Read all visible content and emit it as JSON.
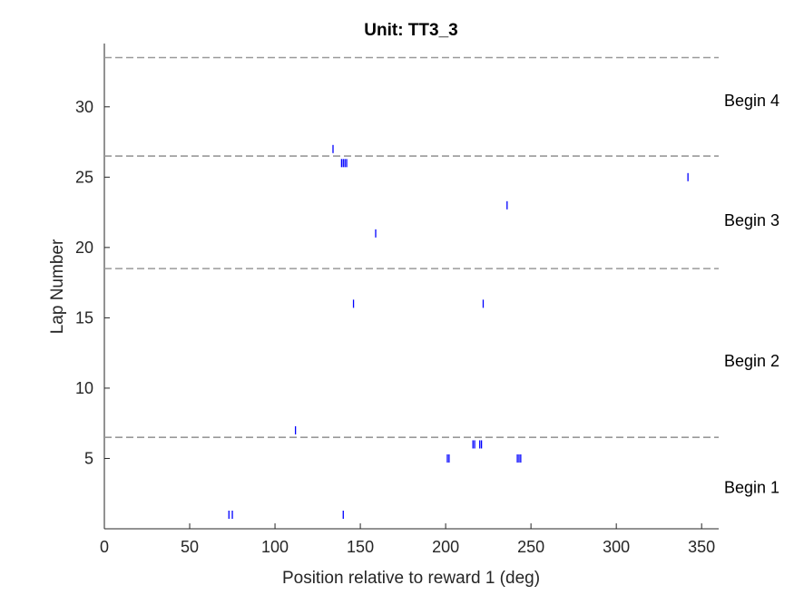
{
  "chart_data": {
    "type": "scatter",
    "title": "Unit: TT3_3",
    "xlabel": "Position relative to reward 1 (deg)",
    "ylabel": "Lap Number",
    "xlim": [
      0,
      360
    ],
    "ylim": [
      0,
      34.5
    ],
    "xticks": [
      0,
      50,
      100,
      150,
      200,
      250,
      300,
      350
    ],
    "yticks": [
      5,
      10,
      15,
      20,
      25,
      30
    ],
    "marker": "vertical-tick",
    "marker_color": "#0000ff",
    "grid": false,
    "spikes": [
      {
        "x": 73,
        "lap": 1
      },
      {
        "x": 75,
        "lap": 1
      },
      {
        "x": 140,
        "lap": 1
      },
      {
        "x": 201,
        "lap": 5
      },
      {
        "x": 202,
        "lap": 5
      },
      {
        "x": 242,
        "lap": 5
      },
      {
        "x": 243,
        "lap": 5
      },
      {
        "x": 244,
        "lap": 5
      },
      {
        "x": 216,
        "lap": 6
      },
      {
        "x": 217,
        "lap": 6
      },
      {
        "x": 220,
        "lap": 6
      },
      {
        "x": 221,
        "lap": 6
      },
      {
        "x": 112,
        "lap": 7
      },
      {
        "x": 146,
        "lap": 16
      },
      {
        "x": 222,
        "lap": 16
      },
      {
        "x": 159,
        "lap": 21
      },
      {
        "x": 236,
        "lap": 23
      },
      {
        "x": 342,
        "lap": 25
      },
      {
        "x": 139,
        "lap": 26
      },
      {
        "x": 140,
        "lap": 26
      },
      {
        "x": 141,
        "lap": 26
      },
      {
        "x": 142,
        "lap": 26
      },
      {
        "x": 134,
        "lap": 27
      }
    ],
    "boundaries": [
      {
        "lap": 6.5,
        "style": "dashed",
        "color": "#999999"
      },
      {
        "lap": 18.5,
        "style": "dashed",
        "color": "#999999"
      },
      {
        "lap": 26.5,
        "style": "dashed",
        "color": "#999999"
      },
      {
        "lap": 33.5,
        "style": "dashed",
        "color": "#999999"
      }
    ],
    "annotations": [
      {
        "text": "Begin 1",
        "lap": 3
      },
      {
        "text": "Begin 2",
        "lap": 12
      },
      {
        "text": "Begin 3",
        "lap": 22
      },
      {
        "text": "Begin 4",
        "lap": 30.5
      }
    ]
  }
}
